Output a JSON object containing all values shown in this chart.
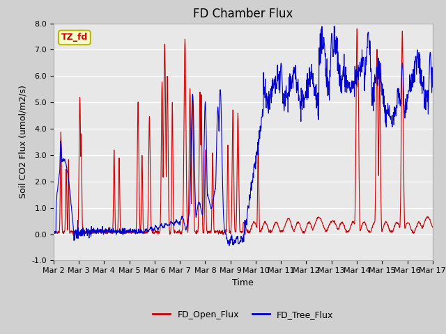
{
  "title": "FD Chamber Flux",
  "xlabel": "Time",
  "ylabel": "Soil CO2 Flux (umol/m2/s)",
  "ylim": [
    -1.0,
    8.0
  ],
  "yticks": [
    -1.0,
    0.0,
    1.0,
    2.0,
    3.0,
    4.0,
    5.0,
    6.0,
    7.0,
    8.0
  ],
  "ytick_labels": [
    "-1.0",
    "0.0",
    "1.0",
    "2.0",
    "3.0",
    "4.0",
    "5.0",
    "6.0",
    "7.0",
    "8.0"
  ],
  "xtick_labels": [
    "Mar 2",
    "Mar 3",
    "Mar 4",
    "Mar 5",
    "Mar 6",
    "Mar 7",
    "Mar 8",
    "Mar 9",
    "Mar 10",
    "Mar 11",
    "Mar 12",
    "Mar 13",
    "Mar 14",
    "Mar 15",
    "Mar 16",
    "Mar 17"
  ],
  "open_color": "#cc0000",
  "tree_color": "#0000cc",
  "fig_bg_color": "#d0d0d0",
  "plot_bg_color": "#e8e8e8",
  "annotation_text": "TZ_fd",
  "annotation_color": "#cc0000",
  "annotation_bg": "#ffffcc",
  "annotation_edge": "#b8b800",
  "legend_labels": [
    "FD_Open_Flux",
    "FD_Tree_Flux"
  ],
  "title_fontsize": 12,
  "axis_fontsize": 9,
  "tick_fontsize": 8,
  "legend_fontsize": 9,
  "linewidth": 0.8,
  "grid_color": "#ffffff",
  "grid_linewidth": 1.0
}
